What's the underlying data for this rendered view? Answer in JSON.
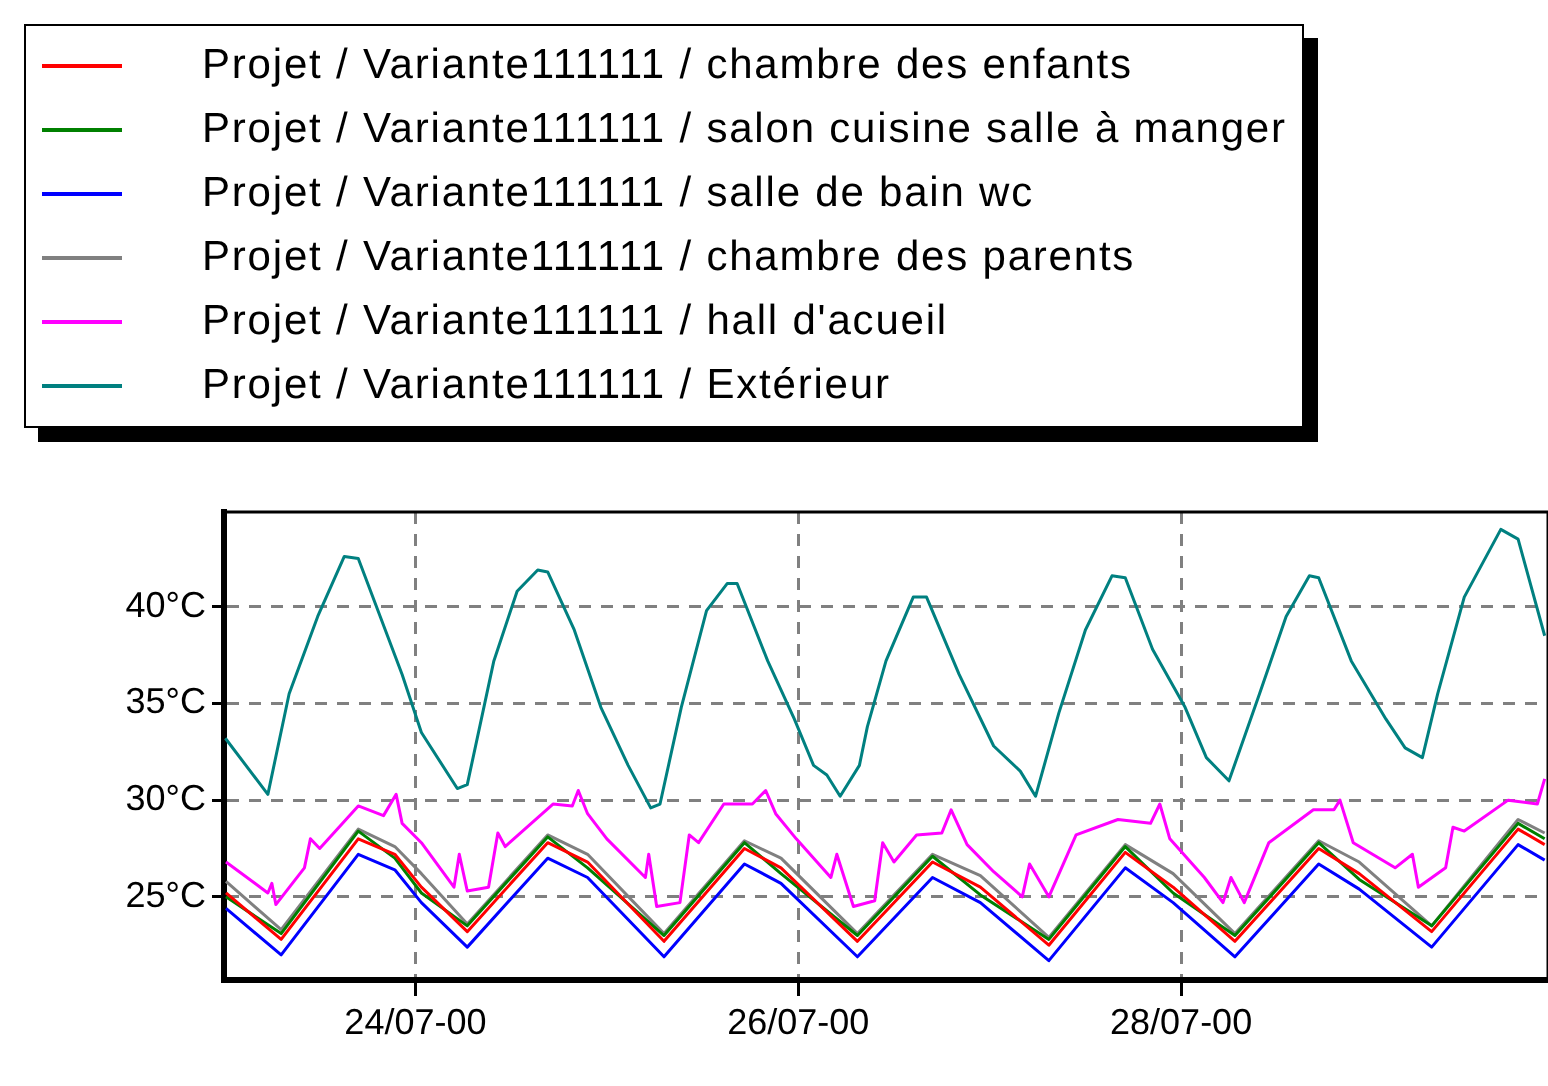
{
  "chart_data": {
    "type": "line",
    "legend": "top left",
    "grid": true,
    "xlim": [
      "2000-07-23T00:00",
      "2000-07-29T22:00"
    ],
    "xticks": [
      {
        "value": "2000-07-24",
        "label": "24/07-00"
      },
      {
        "value": "2000-07-26",
        "label": "26/07-00"
      },
      {
        "value": "2000-07-28",
        "label": "28/07-00"
      }
    ],
    "ylim": [
      20.7,
      44.9
    ],
    "yticks": [
      {
        "value": 25,
        "label": "25°C"
      },
      {
        "value": 30,
        "label": "30°C"
      },
      {
        "value": 35,
        "label": "35°C"
      },
      {
        "value": 40,
        "label": "40°C"
      }
    ],
    "x": [
      "2000-07-23T00:15",
      "2000-07-23T07:10",
      "2000-07-23T16:50",
      "2000-07-23T21:25",
      "2000-07-24T00:45",
      "2000-07-24T06:30",
      "2000-07-24T16:35",
      "2000-07-24T21:35",
      "2000-07-25T07:10",
      "2000-07-25T17:15",
      "2000-07-25T21:50",
      "2000-07-26T07:25",
      "2000-07-26T16:50",
      "2000-07-26T22:50",
      "2000-07-27T07:25",
      "2000-07-27T17:00",
      "2000-07-27T23:00",
      "2000-07-28T06:45",
      "2000-07-28T17:15",
      "2000-07-28T22:20",
      "2000-07-29T07:25",
      "2000-07-29T18:15",
      "2000-07-29T21:35"
    ],
    "series": [
      {
        "name": "Projet / Variante111111 / chambre des enfants",
        "color": "#ff0000",
        "values": [
          25.2,
          22.8,
          28.0,
          27.2,
          25.5,
          23.2,
          27.8,
          26.8,
          22.7,
          27.5,
          26.5,
          22.7,
          26.8,
          25.5,
          22.5,
          27.3,
          25.5,
          22.7,
          27.5,
          26.2,
          23.2,
          28.5,
          27.7
        ]
      },
      {
        "name": "Projet / Variante111111 / salon cuisine salle à manger",
        "color": "#008000",
        "values": [
          25.0,
          23.1,
          28.4,
          27.0,
          25.2,
          23.5,
          28.1,
          26.5,
          23.0,
          27.8,
          26.2,
          23.0,
          27.1,
          25.1,
          22.8,
          27.6,
          25.2,
          23.0,
          27.8,
          25.9,
          23.5,
          28.8,
          28.0
        ]
      },
      {
        "name": "Projet / Variante111111 / salle de bain wc",
        "color": "#0000ff",
        "values": [
          24.4,
          22.0,
          27.2,
          26.4,
          24.7,
          22.4,
          27.0,
          26.0,
          21.9,
          26.7,
          25.7,
          21.9,
          26.0,
          24.7,
          21.7,
          26.5,
          24.7,
          21.9,
          26.7,
          25.4,
          22.4,
          27.7,
          26.9
        ]
      },
      {
        "name": "Projet / Variante111111 / chambre des parents",
        "color": "#808080",
        "values": [
          25.8,
          23.3,
          28.5,
          27.6,
          26.2,
          23.6,
          28.2,
          27.2,
          23.1,
          27.9,
          27.0,
          23.1,
          27.2,
          26.1,
          22.9,
          27.7,
          26.2,
          23.1,
          27.9,
          26.8,
          23.5,
          29.0,
          28.3
        ]
      },
      {
        "name": "Projet / Variante111111 / hall d'acueil",
        "color": "#ff00ff",
        "x": [
          "2000-07-23T00:15",
          "2000-07-23T05:30",
          "2000-07-23T06:00",
          "2000-07-23T06:30",
          "2000-07-23T10:05",
          "2000-07-23T10:50",
          "2000-07-23T12:00",
          "2000-07-23T16:50",
          "2000-07-23T20:00",
          "2000-07-23T21:35",
          "2000-07-23T22:20",
          "2000-07-24T00:45",
          "2000-07-24T04:50",
          "2000-07-24T05:30",
          "2000-07-24T06:30",
          "2000-07-24T09:10",
          "2000-07-24T10:20",
          "2000-07-24T11:15",
          "2000-07-24T17:15",
          "2000-07-24T19:40",
          "2000-07-24T20:25",
          "2000-07-24T21:35",
          "2000-07-25T00:00",
          "2000-07-25T04:50",
          "2000-07-25T05:15",
          "2000-07-25T06:15",
          "2000-07-25T09:10",
          "2000-07-25T10:20",
          "2000-07-25T11:30",
          "2000-07-25T14:40",
          "2000-07-25T18:15",
          "2000-07-25T19:55",
          "2000-07-25T21:10",
          "2000-07-25T23:45",
          "2000-07-26T04:05",
          "2000-07-26T04:50",
          "2000-07-26T06:55",
          "2000-07-26T09:35",
          "2000-07-26T10:35",
          "2000-07-26T12:00",
          "2000-07-26T14:50",
          "2000-07-26T18:00",
          "2000-07-26T19:10",
          "2000-07-26T21:10",
          "2000-07-27T00:30",
          "2000-07-27T04:05",
          "2000-07-27T05:00",
          "2000-07-27T07:25",
          "2000-07-27T10:50",
          "2000-07-27T16:05",
          "2000-07-27T20:10",
          "2000-07-27T21:20",
          "2000-07-27T22:35",
          "2000-07-28T02:55",
          "2000-07-28T05:15",
          "2000-07-28T06:15",
          "2000-07-28T07:55",
          "2000-07-28T11:00",
          "2000-07-28T16:35",
          "2000-07-28T19:10",
          "2000-07-28T19:55",
          "2000-07-28T21:35",
          "2000-07-29T02:50",
          "2000-07-29T05:00",
          "2000-07-29T05:45",
          "2000-07-29T09:10",
          "2000-07-29T10:05",
          "2000-07-29T11:30",
          "2000-07-29T17:00",
          "2000-07-29T20:40",
          "2000-07-29T21:35"
        ],
        "values": [
          26.8,
          25.2,
          25.7,
          24.6,
          26.5,
          28.0,
          27.5,
          29.7,
          29.2,
          30.3,
          28.8,
          27.8,
          25.5,
          27.2,
          25.3,
          25.5,
          28.3,
          27.6,
          29.8,
          29.7,
          30.5,
          29.3,
          28.0,
          26.0,
          27.2,
          24.5,
          24.7,
          28.2,
          27.8,
          29.8,
          29.8,
          30.5,
          29.3,
          28.0,
          26.0,
          27.2,
          24.5,
          24.8,
          27.8,
          26.8,
          28.2,
          28.3,
          29.5,
          27.7,
          26.3,
          25.0,
          26.7,
          25.0,
          28.2,
          29.0,
          28.8,
          29.8,
          28.0,
          26.0,
          24.7,
          26.0,
          24.7,
          27.8,
          29.5,
          29.5,
          30.0,
          27.8,
          26.5,
          27.2,
          25.5,
          26.5,
          28.6,
          28.4,
          30.0,
          29.8,
          31.1
        ]
      },
      {
        "name": "Projet / Variante111111 / Extérieur",
        "color": "#008080",
        "x": [
          "2000-07-23T00:10",
          "2000-07-23T05:30",
          "2000-07-23T08:10",
          "2000-07-23T11:45",
          "2000-07-23T15:05",
          "2000-07-23T16:50",
          "2000-07-23T22:20",
          "2000-07-24T00:45",
          "2000-07-24T05:15",
          "2000-07-24T06:30",
          "2000-07-24T09:50",
          "2000-07-24T12:45",
          "2000-07-24T15:20",
          "2000-07-24T16:35",
          "2000-07-24T19:55",
          "2000-07-24T23:15",
          "2000-07-25T02:40",
          "2000-07-25T05:30",
          "2000-07-25T06:40",
          "2000-07-25T09:20",
          "2000-07-25T12:30",
          "2000-07-25T15:05",
          "2000-07-25T16:20",
          "2000-07-25T20:10",
          "2000-07-25T23:30",
          "2000-07-26T01:55",
          "2000-07-26T03:35",
          "2000-07-26T05:15",
          "2000-07-26T07:40",
          "2000-07-26T08:40",
          "2000-07-26T11:00",
          "2000-07-26T14:25",
          "2000-07-26T16:05",
          "2000-07-26T20:10",
          "2000-07-27T00:30",
          "2000-07-27T03:50",
          "2000-07-27T05:45",
          "2000-07-27T08:40",
          "2000-07-27T12:00",
          "2000-07-27T15:20",
          "2000-07-27T17:00",
          "2000-07-27T20:25",
          "2000-07-28T00:30",
          "2000-07-28T03:10",
          "2000-07-28T06:00",
          "2000-07-28T09:50",
          "2000-07-28T13:10",
          "2000-07-28T16:05",
          "2000-07-28T17:15",
          "2000-07-28T21:20",
          "2000-07-29T01:40",
          "2000-07-29T04:05",
          "2000-07-29T06:15",
          "2000-07-29T08:10",
          "2000-07-29T11:30",
          "2000-07-29T16:05",
          "2000-07-29T18:15",
          "2000-07-29T21:35"
        ],
        "values": [
          33.2,
          30.3,
          35.5,
          39.5,
          42.6,
          42.5,
          36.5,
          33.5,
          30.6,
          30.8,
          37.2,
          40.8,
          41.9,
          41.8,
          38.8,
          34.8,
          31.8,
          29.6,
          29.8,
          34.8,
          39.8,
          41.2,
          41.2,
          37.2,
          34.2,
          31.8,
          31.3,
          30.2,
          31.8,
          33.8,
          37.2,
          40.5,
          40.5,
          36.5,
          32.8,
          31.5,
          30.2,
          34.5,
          38.8,
          41.6,
          41.5,
          37.8,
          34.8,
          32.2,
          31.0,
          35.5,
          39.5,
          41.6,
          41.5,
          37.2,
          34.2,
          32.7,
          32.2,
          35.5,
          40.5,
          44.0,
          43.5,
          38.5
        ]
      }
    ]
  }
}
